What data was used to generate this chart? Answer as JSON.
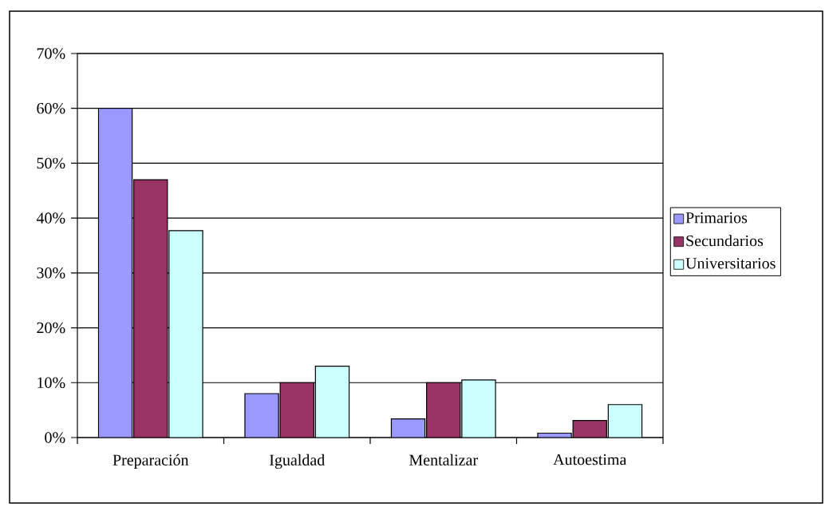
{
  "chart_data": {
    "type": "bar",
    "categories": [
      "Preparación",
      "Igualdad",
      "Mentalizar",
      "Autoestima"
    ],
    "series": [
      {
        "name": "Primarios",
        "color": "#9999ff",
        "values": [
          60,
          8,
          3.4,
          0.8
        ]
      },
      {
        "name": "Secundarios",
        "color": "#993366",
        "values": [
          47,
          10,
          10,
          3.1
        ]
      },
      {
        "name": "Universitarios",
        "color": "#ccffff",
        "values": [
          37.7,
          13,
          10.5,
          6
        ]
      }
    ],
    "ylim": [
      0,
      70
    ],
    "yticks": [
      {
        "value": 0,
        "label": "0%"
      },
      {
        "value": 10,
        "label": "10%"
      },
      {
        "value": 20,
        "label": "20%"
      },
      {
        "value": 30,
        "label": "30%"
      },
      {
        "value": 40,
        "label": "40%"
      },
      {
        "value": 50,
        "label": "50%"
      },
      {
        "value": 60,
        "label": "60%"
      },
      {
        "value": 70,
        "label": "70%"
      }
    ],
    "grid": "y",
    "legend": "right"
  }
}
